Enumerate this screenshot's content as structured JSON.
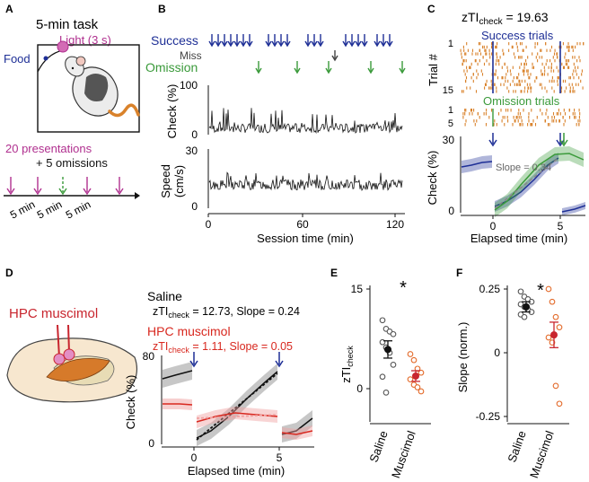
{
  "panels": {
    "A": {
      "letter": "A",
      "title": "5-min task",
      "light_label": "Light (3 s)",
      "food_label": "Food",
      "presentations_label": "20 presentations",
      "omissions_label": "+ 5 omissions",
      "interval_labels": [
        "5 min",
        "5 min",
        "5 min"
      ]
    },
    "B": {
      "letter": "B",
      "legend": {
        "success": "Success",
        "miss": "Miss",
        "omission": "Omission"
      },
      "check_ylabel": "Check (%)",
      "speed_ylabel_1": "Speed",
      "speed_ylabel_2": "(cm/s)",
      "xlabel": "Session time (min)",
      "check_ticks": [
        "0",
        "100"
      ],
      "speed_ticks": [
        "0",
        "30"
      ],
      "x_ticks": [
        "0",
        "60",
        "120"
      ]
    },
    "C": {
      "letter": "C",
      "zti_prefix": "zTI",
      "zti_sub": "check",
      "zti_value": " = 19.63",
      "success_label": "Success trials",
      "omission_label": "Omission trials",
      "trial_ylabel": "Trial #",
      "trial_ticks_success": [
        "1",
        "15"
      ],
      "trial_ticks_omission": [
        "1",
        "5"
      ],
      "check_ylabel": "Check (%)",
      "slope_label": "Slope = 0.34",
      "xlabel": "Elapsed time (min)",
      "y_ticks": [
        "0",
        "30"
      ],
      "x_ticks": [
        "0",
        "5"
      ]
    },
    "D": {
      "letter": "D",
      "region_label": "HPC muscimol",
      "saline_title": "Saline",
      "saline_stats_prefix": "zTI",
      "saline_stats_sub": "check",
      "saline_stats_value": " = 12.73, Slope = 0.24",
      "muscimol_title": "HPC muscimol",
      "muscimol_stats_prefix": "zTI",
      "muscimol_stats_sub": "check",
      "muscimol_stats_value": " =  1.11,  Slope = 0.05",
      "ylabel": "Check (%)",
      "xlabel": "Elapsed time (min)",
      "y_ticks": [
        "0",
        "80"
      ],
      "x_ticks": [
        "0",
        "5"
      ]
    },
    "E": {
      "letter": "E",
      "significance": "*",
      "ylabel_prefix": "zTI",
      "ylabel_sub": "check",
      "categories": [
        "Saline",
        "Muscimol"
      ],
      "y_ticks": [
        "0",
        "15"
      ]
    },
    "F": {
      "letter": "F",
      "significance": "*",
      "ylabel": "Slope (norm.)",
      "categories": [
        "Saline",
        "Muscimol"
      ],
      "y_ticks": [
        "-0.25",
        "0",
        "0.25"
      ]
    }
  },
  "colors": {
    "success": "#1e2f96",
    "omission": "#3a9a3a",
    "miss": "#444444",
    "light": "#b0308f",
    "saline": "#111111",
    "muscimol": "#d8281f",
    "muscimol_dots": "#e36a2a",
    "raster": "#d9822b"
  },
  "chart_data": [
    {
      "id": "E",
      "type": "scatter",
      "categories": [
        "Saline",
        "Muscimol"
      ],
      "series": [
        {
          "name": "Saline",
          "values": [
            10.3,
            9.0,
            8.6,
            8.2,
            7.0,
            6.2,
            5.4,
            3.6,
            1.8,
            -0.6
          ],
          "mean": 5.9,
          "sem": 1.3
        },
        {
          "name": "Muscimol",
          "values": [
            5.2,
            4.3,
            3.0,
            2.4,
            1.4,
            0.6,
            0.2,
            -0.4
          ],
          "mean": 1.9,
          "sem": 0.8
        }
      ],
      "ylabel": "zTIcheck",
      "ylim": [
        -3,
        15
      ],
      "significance": "*"
    },
    {
      "id": "F",
      "type": "scatter",
      "categories": [
        "Saline",
        "Muscimol"
      ],
      "series": [
        {
          "name": "Saline",
          "values": [
            0.24,
            0.22,
            0.21,
            0.2,
            0.19,
            0.18,
            0.17,
            0.16,
            0.15,
            0.14
          ],
          "mean": 0.18,
          "sem": 0.02
        },
        {
          "name": "Muscimol",
          "values": [
            0.25,
            0.2,
            0.14,
            0.1,
            0.06,
            0.04,
            -0.13,
            -0.2
          ],
          "mean": 0.07,
          "sem": 0.05
        }
      ],
      "ylabel": "Slope (norm.)",
      "ylim": [
        -0.25,
        0.27
      ],
      "significance": "*"
    }
  ]
}
